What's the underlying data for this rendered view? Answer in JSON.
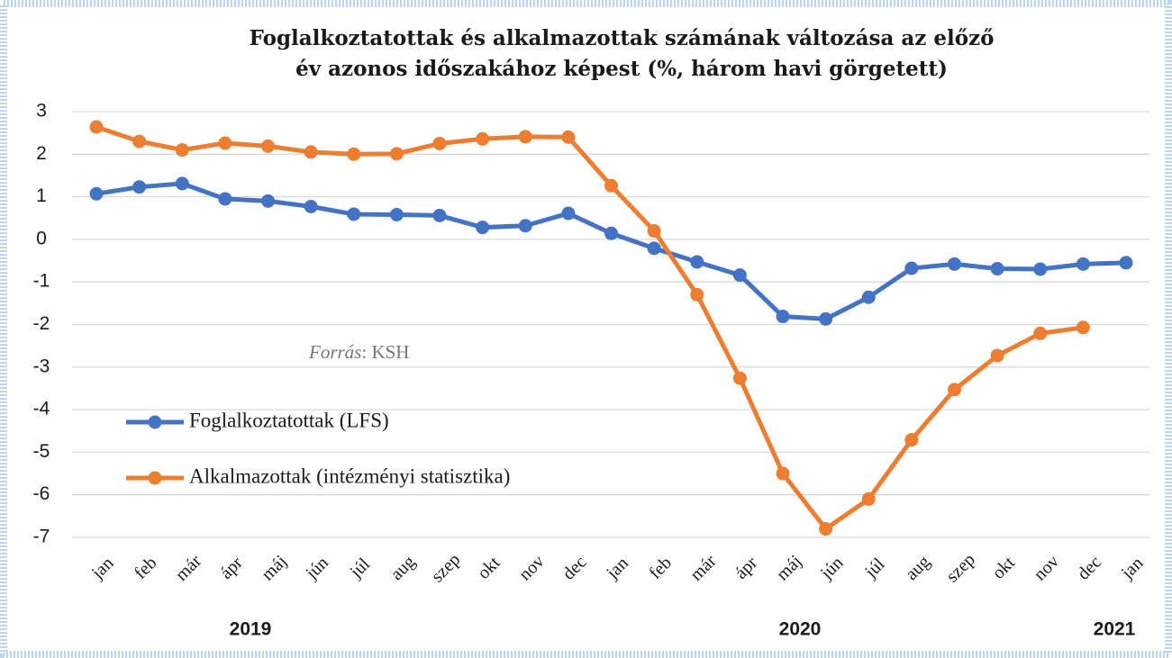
{
  "chart_data": {
    "type": "line",
    "title": [
      "Foglalkoztatottak és alkalmazottak számának változása az előző",
      "év azonos időszakához képest (%, három havi görgetett)"
    ],
    "categories": [
      "jan",
      "feb",
      "már",
      "ápr",
      "máj",
      "jún",
      "júl",
      "aug",
      "szep",
      "okt",
      "nov",
      "dec",
      "jan",
      "feb",
      "már",
      "ápr",
      "máj",
      "jún",
      "júl",
      "aug",
      "szep",
      "okt",
      "nov",
      "dec",
      "jan"
    ],
    "year_labels": [
      "2019",
      "2020",
      "2021"
    ],
    "series": [
      {
        "name": "Foglalkoztatottak (LFS)",
        "color": "#4472c4",
        "values": [
          1.07,
          1.23,
          1.31,
          0.95,
          0.9,
          0.77,
          0.59,
          0.58,
          0.56,
          0.28,
          0.32,
          0.61,
          0.14,
          -0.21,
          -0.53,
          -0.84,
          -1.81,
          -1.87,
          -1.36,
          -0.68,
          -0.58,
          -0.69,
          -0.7,
          -0.58,
          -0.55
        ]
      },
      {
        "name": "Alkalmazottak (intézményi statisztika)",
        "color": "#ed7d31",
        "values": [
          2.64,
          2.3,
          2.1,
          2.26,
          2.19,
          2.05,
          2.0,
          2.01,
          2.25,
          2.36,
          2.41,
          2.4,
          1.26,
          0.2,
          -1.3,
          -3.26,
          -5.5,
          -6.8,
          -6.1,
          -4.71,
          -3.53,
          -2.73,
          -2.21,
          -2.07,
          null
        ]
      }
    ],
    "source_label": "Forrás",
    "source_text": ": KSH",
    "ylim": [
      -7,
      3
    ],
    "yticks": [
      -7,
      -6,
      -5,
      -4,
      -3,
      -2,
      -1,
      0,
      1,
      2,
      3
    ],
    "grid": true
  }
}
